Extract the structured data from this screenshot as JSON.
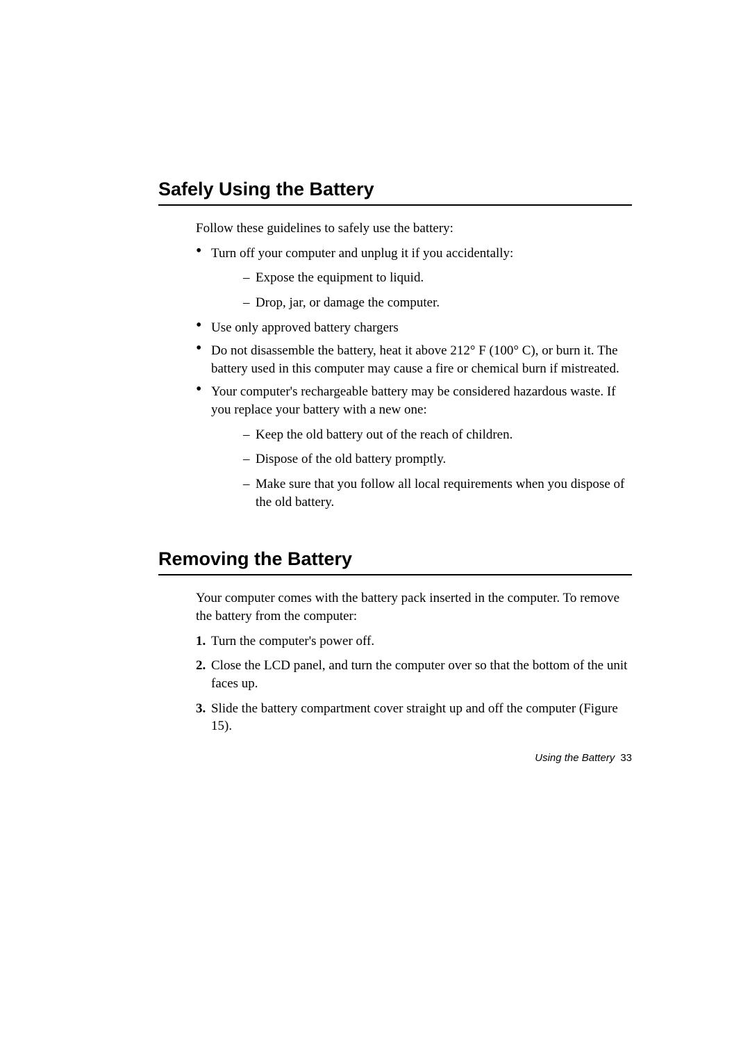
{
  "section1": {
    "heading": "Safely Using the Battery",
    "intro": "Follow these guidelines to safely use the battery:",
    "bullets": [
      {
        "text": "Turn off your computer and unplug it if you accidentally:",
        "sub": [
          "Expose the equipment to liquid.",
          "Drop, jar, or damage the computer."
        ]
      },
      {
        "text": "Use only approved battery chargers"
      },
      {
        "text": "Do not disassemble the battery, heat it above 212° F (100° C), or burn it. The battery used in this computer may cause a fire or chemical burn if mistreated."
      },
      {
        "text": "Your computer's rechargeable battery may be considered hazardous waste. If you replace your battery with a new one:",
        "sub": [
          "Keep the old battery out of the reach of children.",
          "Dispose of the old battery promptly.",
          "Make sure that you follow all local requirements when you dispose of the old battery."
        ]
      }
    ]
  },
  "section2": {
    "heading": "Removing the Battery",
    "intro": "Your computer comes with the battery pack inserted in the computer. To remove the battery from the computer:",
    "steps": [
      "Turn the computer's power off.",
      "Close the LCD panel, and turn the computer over so that the bottom of the unit faces up.",
      "Slide the battery compartment cover straight up and off the computer (Figure 15)."
    ]
  },
  "footer": {
    "label": "Using the Battery",
    "page": "33"
  }
}
